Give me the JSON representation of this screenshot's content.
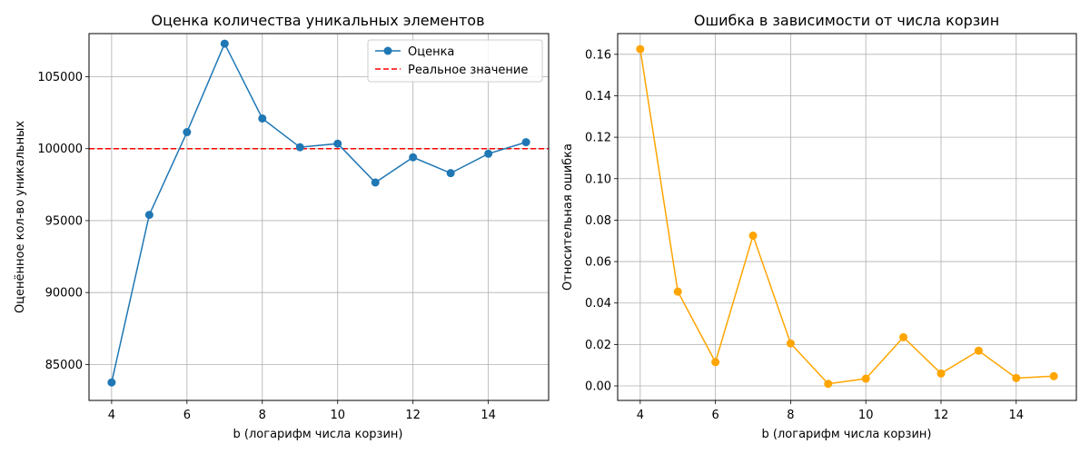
{
  "chart_data": [
    {
      "type": "line",
      "title": "Оценка количества уникальных элементов",
      "xlabel": "b (логарифм числа корзин)",
      "ylabel": "Оценённое кол-во уникальных",
      "xlim": [
        3.4,
        15.6
      ],
      "ylim": [
        82500,
        108000
      ],
      "xticks": [
        4,
        6,
        8,
        10,
        12,
        14
      ],
      "yticks": [
        85000,
        90000,
        95000,
        100000,
        105000
      ],
      "grid": true,
      "legend_position": "top-right",
      "x": [
        4,
        5,
        6,
        7,
        8,
        9,
        10,
        11,
        12,
        13,
        14,
        15
      ],
      "series": [
        {
          "name": "Оценка",
          "color": "#1f77b4",
          "marker": "circle",
          "values": [
            83750,
            95400,
            101150,
            107300,
            102100,
            100100,
            100350,
            97650,
            99400,
            98300,
            99650,
            100450
          ]
        }
      ],
      "reference_lines": [
        {
          "name": "Реальное значение",
          "y": 100000,
          "color": "#ff0000",
          "style": "dashed"
        }
      ]
    },
    {
      "type": "line",
      "title": "Ошибка в зависимости от числа корзин",
      "xlabel": "b (логарифм числа корзин)",
      "ylabel": "Относительная ошибка",
      "xlim": [
        3.4,
        15.6
      ],
      "ylim": [
        -0.007,
        0.17
      ],
      "xticks": [
        4,
        6,
        8,
        10,
        12,
        14
      ],
      "yticks": [
        0.0,
        0.02,
        0.04,
        0.06,
        0.08,
        0.1,
        0.12,
        0.14,
        0.16
      ],
      "ytick_labels": [
        "0.00",
        "0.02",
        "0.04",
        "0.06",
        "0.08",
        "0.10",
        "0.12",
        "0.14",
        "0.16"
      ],
      "grid": true,
      "x": [
        4,
        5,
        6,
        7,
        8,
        9,
        10,
        11,
        12,
        13,
        14,
        15
      ],
      "series": [
        {
          "color": "#ffa500",
          "marker": "circle",
          "values": [
            0.1625,
            0.0455,
            0.0115,
            0.0725,
            0.0205,
            0.001,
            0.0035,
            0.0235,
            0.006,
            0.017,
            0.0038,
            0.0047
          ]
        }
      ]
    }
  ]
}
